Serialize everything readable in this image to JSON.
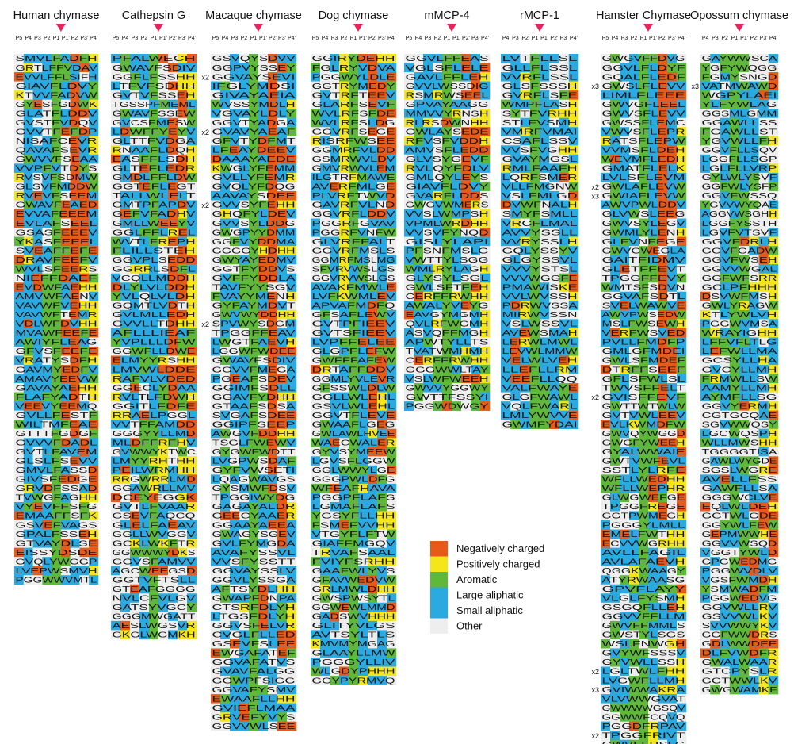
{
  "legend": [
    {
      "label": "Negatively charged",
      "color": "#E85A1A"
    },
    {
      "label": "Positively charged",
      "color": "#F4E61A"
    },
    {
      "label": "Aromatic",
      "color": "#5FB83A"
    },
    {
      "label": "Large aliphatic",
      "color": "#2AAAE0"
    },
    {
      "label": "Small aliphatic",
      "color": "#2AAAE0"
    },
    {
      "label": "Other",
      "color": "#EEEEEE"
    }
  ],
  "marker_color": "#E8245A",
  "columns": [
    {
      "title": "Human chymase",
      "positions": [
        "P5",
        "P4",
        "P3",
        "P2",
        "P1",
        "P1'",
        "P2'",
        "P3'",
        "P4'"
      ],
      "rows": [
        "SMVLFADFH",
        "GRTLFFVDAV",
        "EVVLFFLSIFH",
        "GIAVFLDVY",
        "KTVVFADVW",
        "GYESFGDWK",
        "GLATFLDDV",
        "GVSTFVDQV",
        "GVVTFEFDP",
        "NISAFCEVR",
        "QAVAFSEVR",
        "GWVVFSEAA",
        "VVPFVTDYS",
        "RVSVFSDMW",
        "GLSVFMDDW",
        "RVEVFSEEM",
        "GWAVFEAED",
        "EVVAFEEEM",
        "EVLAFSEEL",
        "GSASFEEEV",
        "YKASFEEEL",
        "SVEAFFEFE",
        "DRAVFEEFV",
        "WVLSFEERS",
        "NIEFFDAEF",
        "EVDWFAEHH",
        "AMVWFAENV",
        "VAVWFVEHH",
        "VAVWFTEMR",
        "VDLWFDVHH",
        "MVAWFEEFE",
        "AWIYFLEAG",
        "GFVSFEEFE",
        "VRATYSDFH",
        "GAVMYEDFV",
        "AMAVYEEVW",
        "GAVAYAEHH",
        "FLAFYADTH",
        "VEEVYEEMQ",
        "GVLLFESTF",
        "WILTMFEAE",
        "GTTTFGDGF",
        "GVVVFDADL",
        "GVTLFAVEM",
        "GLSLFSEVV",
        "GMVLFASSD",
        "GIVSFEDGE",
        "GRVDFSSAD",
        "TVWGFAGHH",
        "VYEVFFSFG",
        "EMAAFFSFK",
        "GSVEFVAGS",
        "GPALFSSEH",
        "GTVAYDLSE",
        "EISSYDSDE",
        "GVQLYWGGP",
        "LVEPWSMVH",
        "PGGWWVMTL"
      ]
    },
    {
      "title": "Cathepsin G",
      "positions": [
        "P5",
        "P4",
        "P3",
        "P2",
        "P1",
        "P1'",
        "P2'",
        "P3'",
        "P4'"
      ],
      "rows": [
        "PFALWECH",
        "GWAVFSDIV",
        "GGFLFSSHH",
        "LTFVFSDHH",
        "GVTVFSSEH",
        "TGSSPFMEML",
        "GWAVFSSEW",
        "GVCSFMESW",
        "LDWFFYEYV",
        "GLTTFVDGA",
        "RNAAFLDQH",
        "EASFFLSDH",
        "GLTEFLEDR",
        "GMDLFFLDW",
        "GGTEFLEGT",
        "TALLWLELT",
        "GMTPFAPDV",
        "GEFVFADHV",
        "GMLLWEEYV",
        "GGLFFLREL",
        "WVTLFREPH",
        "FLILLSTEH",
        "GGVPLSEDD",
        "GGRRLSDFL",
        "VCQLLMDDH",
        "DLYLVLDDH",
        "YVLQLVLDH",
        "GQMTLVDTH",
        "GVLMLLEDH",
        "GVVLLTDHH",
        "AFLLLIEAF",
        "YVPLLLDFW",
        "GGWFLLDWE",
        "ELMYYRSHH",
        "LMVWLDDE",
        "RAFVLVDED",
        "GGECLYDAA",
        "RVLTLFDWH",
        "GGITLFDFE",
        "RRAELPGGL",
        "VVTFFAMDD",
        "GGGYYLLMD",
        "MLDFFRFHV",
        "GVWWYKTWC",
        "LMYYRHTHH",
        "PEILWRMHH",
        "RRGWRRLMD",
        "GGAWRLLMV",
        "DCEYEGGK",
        "GVTLFVAAR",
        "GSEVFAQCQ",
        "GLELFAEAV",
        "GGLLWVGGV",
        "GCKLWKFTR",
        "GGWWWYDKS",
        "GGVSFAMVV",
        "AGCWEEGSD",
        "GGTVFTSLL",
        "GTEAFGGGG",
        "NVLCFVLGV",
        "GATSYVGCY",
        "GGGMWGATT",
        "AESLWGSVR",
        "GKGLWGMKH"
      ]
    },
    {
      "title": "Macaque chymase",
      "positions": [
        "P5",
        "P4",
        "P3",
        "P2",
        "P1",
        "P1'",
        "P2'",
        "P3'",
        "P4'"
      ],
      "annotations": [
        {
          "label": "x2",
          "row": 2
        },
        {
          "label": "x2",
          "row": 8
        },
        {
          "label": "x2",
          "row": 16
        },
        {
          "label": "x2",
          "row": 29
        }
      ],
      "rows": [
        "GSVQYSDVV",
        "GGPVYSSEY",
        "GGVAYSEVI",
        "IFGLYMDSI",
        "GIVAYAEIA",
        "WVSSYMDLH",
        "VGVAYLDLY",
        "GGVTYADGA",
        "GVAVYAEAF",
        "GFVTYDFMT",
        "LFEAYDEEV",
        "DAAAYAEDE",
        "KWGLYFEMM",
        "GVLLYFEMR",
        "GVQLYFDQG",
        "AAVAYSDEE",
        "GVVSYFEHH",
        "GHQFYLDEV",
        "GVVSYLDDG",
        "GWGPYYDMM",
        "GGFVYDDMA",
        "GGGGYHDHH",
        "GWYAYEDMV",
        "GGTFYDDVS",
        "GVFFYDDLA",
        "TAVFYYSGV",
        "FVAYYMENH",
        "GYFAYMDVT",
        "GWVWYDDHH",
        "SPVWYSDGM",
        "TPGGFFEAV",
        "LWGTFAEVH",
        "LGGWFWDEE",
        "GWAVFSDIV",
        "GGVVFMEGA",
        "PGEAFSDEV",
        "GGIMFSDLL",
        "GGAVFYDHH",
        "GTAAFSDSA",
        "SVGAFSDEE",
        "GGIPFSEEP",
        "AWGVFDDHH",
        "TSGLFWEWV",
        "GYGWFWDTT",
        "LVGPWSDAF",
        "GYFVWSETI",
        "LQAGWAVGS",
        "GYSMWFDSV",
        "TPGGIWYDG",
        "GAGAYALDR",
        "GEECYAAER",
        "GGAAYAEEA",
        "GWAGYSGEV",
        "GVLFYMGDA",
        "AVAFYSSVL",
        "VVSFYSSTT",
        "GGVAYSSLV",
        "GGVLYSSGA",
        "AFTSYDLHH",
        "GWAPFDNPA",
        "CTSRFDLYH",
        "LTGSFDLYH",
        "GGVSFELVR",
        "CVGLFLLED",
        "GSEVFSLEE",
        "EWGAFATEF",
        "GGVAFATVS",
        "GVAVFALGG",
        "GGWPFSIGG",
        "GGVAFYSMV",
        "EWAAFLLHH",
        "GVIEFLMAA",
        "GRVEFYVYS",
        "GGVVWLSEE"
      ]
    },
    {
      "title": "Dog chymase",
      "positions": [
        "P5",
        "P4",
        "P3",
        "P2",
        "P1",
        "P1'",
        "P2'",
        "P3'",
        "P4'"
      ],
      "rows": [
        "GGIRYDEHH",
        "FGLRYVDVA",
        "PGGWYLDLE",
        "GGTRYMEDY",
        "GVTRFTEEV",
        "GLARFSEVF",
        "WVLRFSFDE",
        "WVLRFSLDG",
        "GGVRFSEGE",
        "RISRFWSEE",
        "GGMRFVLDD",
        "GSMRWVLDV",
        "GMVRWVLEM",
        "ILGTRFMAWE",
        "AVERFMLGE",
        "PLVRFTWVD",
        "GAVRFVLND",
        "GGVRFLDDV",
        "PGGRFGVAV",
        "PGGRFVNFW",
        "GLVRFFALT",
        "GGVRFMSLS",
        "GGMRFMSLMG",
        "SFVRVWSLGS",
        "GGVRVWSLGS",
        "AVAKFMWLE",
        "LVFKWMLEV",
        "APVAFMDFQ",
        "GFSAFLEWV",
        "GVTPFIEEV",
        "GVTSFIEEV",
        "LVPFFELEE",
        "GLGPFLEFW",
        "GWFFFAFEW",
        "DRTAFFDDV",
        "GGMLYVLEVR",
        "GFSSWLDLW",
        "GGLLWLEHL",
        "GSVLWLEHL",
        "GGVTFLEVE",
        "GWAAFLGEG",
        "GWLAWLHVEE",
        "WAECWALER",
        "GYVSYMEEW",
        "LGVSFLGGW",
        "GGLWWYLGE",
        "GGGPWLDFG",
        "WFEAFHAVA",
        "PGGPFLAFS",
        "LGMAFLAFS",
        "YGSYFLLHH",
        "FSMEFVVHH",
        "VTGYFLFTW",
        "GIAFFMGQV",
        "TRVAFSAAL",
        "FVIYFSRHH",
        "GAAFWLYVS",
        "GFAVWEDVW",
        "GRLMWLDHH",
        "GWSPWSYTL",
        "GGWEWLMMD",
        "GADSWVHHH",
        "GLITYVLGS",
        "AVTSYLTLS",
        "KMVMYMGAG",
        "GLAAYLLMW",
        "PGGGYLLIV",
        "WLGDYPHHH",
        "GGYPYRMVQ"
      ]
    },
    {
      "title": "mMCP-4",
      "positions": [
        "P5",
        "P4",
        "P3",
        "P2",
        "P1",
        "P1'",
        "P2'",
        "P3'",
        "P4'"
      ],
      "rows": [
        "GGVLFFEAS",
        "VGLSFLELE",
        "GAVLFFLEH",
        "GVVLWSSDIG",
        "RSMRWSEEL",
        "GPVAYAAGG",
        "MMVVYRNSH",
        "RLRSDWNHH",
        "GWLAYSEDE",
        "RFVSFVDDH",
        "AMVSFLEDD",
        "GLVSYGEVF",
        "RVLQYFDLV",
        "GMLQYLEYS",
        "GIAVFLDVY",
        "GVARFLDDS",
        "GWGVWMERS",
        "VVSLWMPSH",
        "VPMLWRDHH",
        "VVSVFYNQD",
        "GISLYLAPI",
        "PFSNFMSLG",
        "VWTTYLSGG",
        "WMLRYLAGH",
        "GLYSYLSGL",
        "GWLSFTFEH",
        "CERFFRWHH",
        "AWALYVEYG",
        "EAVGYMGMH",
        "QVLRFWGMH",
        "ASVQFFMGH",
        "APWTYLLTS",
        "TVATWMHMH",
        "CERFFRWHH",
        "GGGWWLTAY",
        "VSLWFWEEH",
        "GWVVYGGWY",
        "GWTTFSSYI",
        "PGGWDWGY"
      ]
    },
    {
      "title": "rMCP-1",
      "positions": [
        "P4",
        "P3",
        "P2",
        "P1",
        "P1'",
        "P2'",
        "P3'",
        "P4'"
      ],
      "rows": [
        "LVTFLLSL",
        "GLLFLSSL",
        "VVRFLSSL",
        "GLSFSSSH",
        "GVRFLSFE",
        "WMPFLASH",
        "SYTFVRHH",
        "STLFVSMH",
        "VMRFVMAI",
        "CSAFLSSV",
        "VVSFVGHH",
        "GVAYMGSL",
        "RMLFAAFH",
        "LQRFSMER",
        "VLLFMGNW",
        "VSLFMLGD",
        "DVWFNALH",
        "SMYFSMLL",
        "VRCFLMAL",
        "AVVYSSLL",
        "VVRYSSLH",
        "GQLYSSYV",
        "GLGYSSVL",
        "VVVYSTSL",
        "VVVWGGFE",
        "PMAWISKE",
        "VVLWVSSH",
        "PDRWVSSA",
        "MIRWVSSN",
        "VSLWSSVL",
        "AVEWSMAH",
        "LERWLMWL",
        "LEVWLMMW",
        "VELWLVEH",
        "LLEFLLRM",
        "VEEFLLQQ",
        "VALFWAYE",
        "GLGFWAWL",
        "VQLFWARL",
        "LMLYWVVE",
        "GWMFYDAI"
      ]
    },
    {
      "title": "Hamster Chymase",
      "positions": [
        "P5",
        "P4",
        "P3",
        "P2",
        "P1",
        "P1'",
        "P2'",
        "P3'",
        "P4'"
      ],
      "annotations": [
        {
          "label": "x3",
          "row": 3
        },
        {
          "label": "x2",
          "row": 14
        },
        {
          "label": "x3",
          "row": 15
        },
        {
          "label": "x2",
          "row": 37
        },
        {
          "label": "x2",
          "row": 67
        },
        {
          "label": "x3",
          "row": 69
        },
        {
          "label": "x2",
          "row": 74
        }
      ],
      "rows": [
        "GWGVFFDVG",
        "GGVLFLDYF",
        "GQALFLEDF",
        "GWSLFLEVV",
        "LIMLFLEEE",
        "GWVGFLEEL",
        "GWVSFLEVV",
        "GWSSFLEMC",
        "VWVSFLEPR",
        "RATSFLEPW",
        "VVMSFLDEH",
        "WEVMFLEDH",
        "GMATFLELK",
        "LVLSFLEVM",
        "GWLAFLEVW",
        "GWIAFLEVW",
        "AWVPWLDDV",
        "GLVWSLEEG",
        "GWVSYLEGV",
        "GWMLYLENH",
        "GLFVNFEGE",
        "GWVGWEGLA",
        "GAITFIDMV",
        "GLETFFEVT",
        "TPGGFFEVY",
        "WMTSFSDVN",
        "GGVAFSDTL",
        "SVELWAWVE",
        "AWVPWSEDW",
        "MSLFWSEWH",
        "VERFWSVED",
        "PVLLFMDFP",
        "GMLGFMDEI",
        "GWLSFMDEF",
        "DTRFFSEEF",
        "GFLSFWLSL",
        "TWVSFFELT",
        "GVISFFEVF",
        "GWTTWTWLW",
        "GVTVWLEEV",
        "EVLKWMDFW",
        "GWVQYWGGD",
        "GWGFYWEEH",
        "GYALWWAIE",
        "GWTVWFEVL",
        "SSTLYLRFE",
        "WFLLWEDHH",
        "WFLLWEPHR",
        "GLWGWEFGE",
        "TPGGFREGE",
        "GGTPWMEGH",
        "PGGGYLMLL",
        "EMELFWTHH",
        "ECVVWGRHH",
        "AVLLFAGIL",
        "AVLAFAEVH",
        "QGGKWAAGY",
        "ATYRWAASG",
        "GPVFLAYY",
        "VLGLFYSMH",
        "GSGQFLLEH",
        "GGVVFFLLM",
        "GWVFFMMLS",
        "GWSTYLSGS",
        "WSLFNWGH",
        "GVYWFSSSV",
        "GYVWLLSSH",
        "LGLTWLFHH",
        "LVGWFLLMH",
        "GVIWWAKRA",
        "VLVWWGVAT",
        "GWWWWGSQV",
        "GGWWFCQVQ",
        "PGGDFRPAV",
        "TPGGFRIVT",
        "GWVFFRSLG",
        "LFIFWHAVH"
      ]
    },
    {
      "title": "Opossum chymase",
      "positions": [
        "P4",
        "P3",
        "P2",
        "P1",
        "P1'",
        "P2'",
        "P3'",
        "P4'"
      ],
      "annotations": [
        {
          "label": "x3",
          "row": 3
        }
      ],
      "rows": [
        "GAYWWSCA",
        "YGFYWQGG",
        "FGMYSNGD",
        "VATMWAWD",
        "WGPYLAEI",
        "YLFYWLAG",
        "GGSMLGMM",
        "GGAWLLSS",
        "FGAWLLST",
        "YGVWLLFH",
        "GGVFLLSQV",
        "LGGFLLSGP",
        "LGLFLLVRP",
        "GYLWLYSVF",
        "GGFWLYSFP",
        "GGVFWSSQ",
        "YGVVWYQAE",
        "AGGVWSGHH",
        "LGGFYSSTH",
        "LGVFVTSVF",
        "GGVFDRLH",
        "GGVFGADW",
        "GGVFWSEH",
        "GGVVWGAL",
        "GGFWFSRR",
        "GCLPFHHH",
        "DSVWFMSH",
        "GWLYRAGW",
        "KTLYWLVH",
        "PGGWVMSA",
        "WRAYIGHH",
        "LFFVFLTLG",
        "LEFWLLMA",
        "GCSYLLHA",
        "GVCYLLMH",
        "FRMWLLSW",
        "AAMYLLMH",
        "AYMFLLSG",
        "GGVYERMH",
        "CGTGCQAE",
        "SGVWWQSY",
        "LGCWQSPH",
        "WLLMWSHH",
        "TGGGGTISA",
        "GAWLWYGDE",
        "SGSLWGRE",
        "AVELLFSS",
        "GAWFLLSA",
        "GGGWCLVE",
        "EQLWLDEH",
        "GGTWLGDE",
        "GGYWLFEW",
        "GEPMWWHE",
        "GGVVWSQD",
        "VGGTYWLD",
        "GPGWEDMG",
        "PGGWVDLV",
        "VGSFWMDH",
        "YSMWADFM",
        "PGGWEDVG",
        "GGVWLLRV",
        "GSVVWLKV",
        "SVVWWYKV",
        "GGFWWDRS",
        "GDLWWDEE",
        "DLFVWDFR",
        "GWALWAAR",
        "GTCPYSLR",
        "GGTWWLKV",
        "GWGWAMKF"
      ]
    }
  ]
}
